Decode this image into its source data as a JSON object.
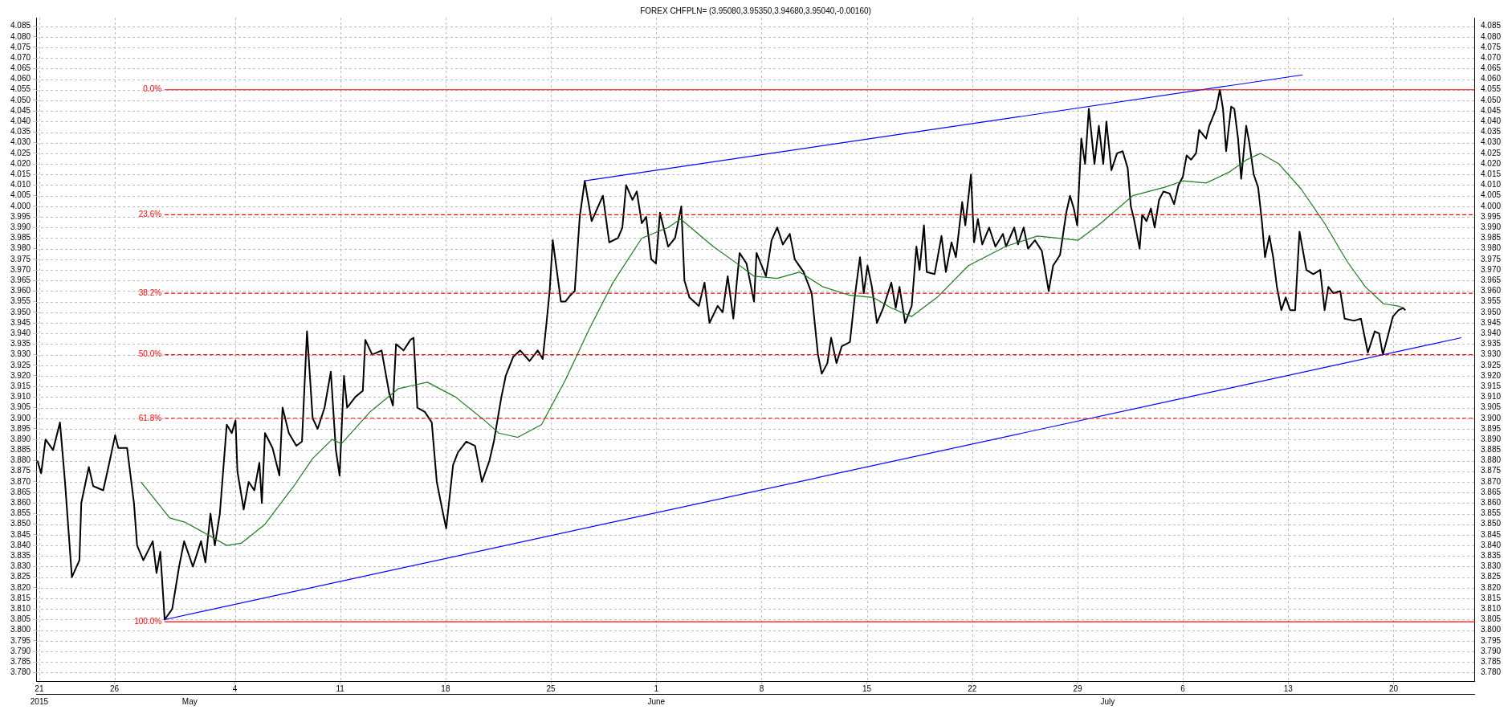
{
  "chart_data": {
    "type": "line",
    "title": "FOREX CHFPLN= (3.95080,3.95350,3.94680,3.95040,-0.00160)",
    "grid": true,
    "xlim": [
      "2015-04-20T19:00",
      "2015-07-25T10:00"
    ],
    "xticks": [
      {
        "value": "2015-04-21",
        "label": "21"
      },
      {
        "value": "2015-04-26",
        "label": "26"
      },
      {
        "value": "2015-05-04",
        "label": "4"
      },
      {
        "value": "2015-05-11",
        "label": "11"
      },
      {
        "value": "2015-05-18",
        "label": "18"
      },
      {
        "value": "2015-05-25",
        "label": "25"
      },
      {
        "value": "2015-06-01",
        "label": "1"
      },
      {
        "value": "2015-06-08",
        "label": "8"
      },
      {
        "value": "2015-06-15",
        "label": "15"
      },
      {
        "value": "2015-06-22",
        "label": "22"
      },
      {
        "value": "2015-06-29",
        "label": "29"
      },
      {
        "value": "2015-07-06",
        "label": "6"
      },
      {
        "value": "2015-07-13",
        "label": "13"
      },
      {
        "value": "2015-07-20",
        "label": "20"
      }
    ],
    "x2lim": [
      "2015-04-20T19:00",
      "2015-07-25T10:00"
    ],
    "x2ticks": [
      {
        "value": "2015-04-21",
        "label": "2015"
      },
      {
        "value": "2015-05-01",
        "label": "May"
      },
      {
        "value": "2015-06-01",
        "label": "June"
      },
      {
        "value": "2015-07-01",
        "label": "July"
      }
    ],
    "ylim": [
      3.776,
      4.089
    ],
    "yticks": [
      {
        "value": 3.78,
        "label": "3.780"
      },
      3.785,
      {
        "value": 3.79,
        "label": "3.790"
      },
      3.795,
      {
        "value": 3.8,
        "label": "3.800"
      },
      3.805,
      {
        "value": 3.81,
        "label": "3.810"
      },
      3.815,
      {
        "value": 3.82,
        "label": "3.820"
      },
      3.825,
      {
        "value": 3.83,
        "label": "3.830"
      },
      3.835,
      {
        "value": 3.84,
        "label": "3.840"
      },
      3.845,
      {
        "value": 3.85,
        "label": "3.850"
      },
      3.855,
      {
        "value": 3.86,
        "label": "3.860"
      },
      3.865,
      {
        "value": 3.87,
        "label": "3.870"
      },
      3.875,
      {
        "value": 3.88,
        "label": "3.880"
      },
      3.885,
      {
        "value": 3.89,
        "label": "3.890"
      },
      3.895,
      {
        "value": 3.9,
        "label": "3.900"
      },
      3.905,
      {
        "value": 3.91,
        "label": "3.910"
      },
      3.915,
      {
        "value": 3.92,
        "label": "3.920"
      },
      3.925,
      {
        "value": 3.93,
        "label": "3.930"
      },
      3.935,
      {
        "value": 3.94,
        "label": "3.940"
      },
      3.945,
      {
        "value": 3.95,
        "label": "3.950"
      },
      3.955,
      {
        "value": 3.96,
        "label": "3.960"
      },
      3.965,
      {
        "value": 3.97,
        "label": "3.970"
      },
      3.975,
      {
        "value": 3.98,
        "label": "3.980"
      },
      3.985,
      {
        "value": 3.99,
        "label": "3.990"
      },
      3.995,
      {
        "value": 4.0,
        "label": "4.000"
      },
      4.005,
      {
        "value": 4.01,
        "label": "4.010"
      },
      4.015,
      {
        "value": 4.02,
        "label": "4.020"
      },
      4.025,
      {
        "value": 4.03,
        "label": "4.030"
      },
      4.035,
      {
        "value": 4.04,
        "label": "4.040"
      },
      4.045,
      {
        "value": 4.05,
        "label": "4.050"
      },
      4.055,
      {
        "value": 4.06,
        "label": "4.060"
      },
      4.065,
      {
        "value": 4.07,
        "label": "4.070"
      },
      4.075,
      {
        "value": 4.08,
        "label": "4.080"
      },
      4.085
    ],
    "y2lim": [
      3.776,
      4.089
    ],
    "y2ticks": [
      {
        "value": 3.78,
        "label": "3.780"
      },
      3.785,
      {
        "value": 3.79,
        "label": "3.790"
      },
      3.795,
      {
        "value": 3.8,
        "label": "3.800"
      },
      3.805,
      {
        "value": 3.81,
        "label": "3.810"
      },
      3.815,
      {
        "value": 3.82,
        "label": "3.820"
      },
      3.825,
      {
        "value": 3.83,
        "label": "3.830"
      },
      3.835,
      {
        "value": 3.84,
        "label": "3.840"
      },
      3.845,
      {
        "value": 3.85,
        "label": "3.850"
      },
      3.855,
      {
        "value": 3.86,
        "label": "3.860"
      },
      3.865,
      {
        "value": 3.87,
        "label": "3.870"
      },
      3.875,
      {
        "value": 3.88,
        "label": "3.880"
      },
      3.885,
      {
        "value": 3.89,
        "label": "3.890"
      },
      3.895,
      {
        "value": 3.9,
        "label": "3.900"
      },
      3.905,
      {
        "value": 3.91,
        "label": "3.910"
      },
      3.915,
      {
        "value": 3.92,
        "label": "3.920"
      },
      3.925,
      {
        "value": 3.93,
        "label": "3.930"
      },
      3.935,
      {
        "value": 3.94,
        "label": "3.940"
      },
      3.945,
      {
        "value": 3.95,
        "label": "3.950"
      },
      3.955,
      {
        "value": 3.96,
        "label": "3.960"
      },
      3.965,
      {
        "value": 3.97,
        "label": "3.970"
      },
      3.975,
      {
        "value": 3.98,
        "label": "3.980"
      },
      3.985,
      {
        "value": 3.99,
        "label": "3.990"
      },
      3.995,
      {
        "value": 4.0,
        "label": "4.000"
      },
      4.005,
      {
        "value": 4.01,
        "label": "4.010"
      },
      4.015,
      {
        "value": 4.02,
        "label": "4.020"
      },
      4.025,
      {
        "value": 4.03,
        "label": "4.030"
      },
      4.035,
      {
        "value": 4.04,
        "label": "4.040"
      },
      4.045,
      {
        "value": 4.05,
        "label": "4.050"
      },
      4.055,
      {
        "value": 4.06,
        "label": "4.060"
      },
      4.065,
      {
        "value": 4.07,
        "label": "4.070"
      },
      4.075,
      {
        "value": 4.08,
        "label": "4.080"
      },
      4.085
    ],
    "series": [
      {
        "name": "0.0%",
        "color": "#ff0000",
        "line_style": "solid",
        "x": [
          "2015-04-29T08:00",
          "2015-07-25T10:00"
        ],
        "values": [
          4.055,
          4.055
        ]
      },
      {
        "name": "23.6%",
        "color": "#ff0000",
        "line_style": "dashed",
        "x": [
          "2015-04-29T08:00",
          "2015-07-25T10:00"
        ],
        "values": [
          3.996,
          3.996
        ]
      },
      {
        "name": "38.2%",
        "color": "#ff0000",
        "line_style": "dashed",
        "x": [
          "2015-04-29T08:00",
          "2015-07-25T10:00"
        ],
        "values": [
          3.959,
          3.959
        ]
      },
      {
        "name": "50.0%",
        "color": "#ff0000",
        "line_style": "dashed",
        "x": [
          "2015-04-29T08:00",
          "2015-07-25T10:00"
        ],
        "values": [
          3.93,
          3.93
        ]
      },
      {
        "name": "61.8%",
        "color": "#ff0000",
        "line_style": "dashed",
        "x": [
          "2015-04-29T08:00",
          "2015-07-25T10:00"
        ],
        "values": [
          3.9,
          3.9
        ]
      },
      {
        "name": "100.0%",
        "color": "#ff0000",
        "line_style": "solid",
        "x": [
          "2015-04-29T08:00",
          "2015-07-25T10:00"
        ],
        "values": [
          3.804,
          3.804
        ]
      },
      {
        "color": "#0000ff",
        "line_style": "solid",
        "x": [
          "2015-05-27T06:00",
          "2015-07-13T23:00"
        ],
        "values": [
          4.012,
          4.062
        ]
      },
      {
        "color": "#0000ff",
        "line_style": "solid",
        "x": [
          "2015-04-29T08:00",
          "2015-07-24T12:00"
        ],
        "values": [
          3.805,
          3.938
        ]
      },
      {
        "color": "#1e7a1e",
        "line_style": "solid",
        "x": [
          "2015-04-27T18:00",
          "2015-04-29T16:00",
          "2015-04-30T16:00",
          "2015-05-02T05:00",
          "2015-05-03T11:00",
          "2015-05-04T10:00",
          "2015-05-06T00:00",
          "2015-05-07T22:00",
          "2015-05-09T04:00",
          "2015-05-10T11:00",
          "2015-05-11T02:00",
          "2015-05-12T23:30",
          "2015-05-14T21:00",
          "2015-05-16T19:00",
          "2015-05-18T16:00",
          "2015-05-20T14:00",
          "2015-05-21T13:00",
          "2015-05-22T19:00",
          "2015-05-24T09:00",
          "2015-05-25T23:00",
          "2015-05-27T13:00",
          "2015-05-29T03:00",
          "2015-05-31T01:00",
          "2015-06-01T19:00",
          "2015-06-02T15:00",
          "2015-06-04T19:00",
          "2015-06-06T09:00",
          "2015-06-07T12:00",
          "2015-06-09T01:00",
          "2015-06-10T13:00",
          "2015-06-12T02:00",
          "2015-06-13T21:00",
          "2015-06-15T10:00",
          "2015-06-16T15:00",
          "2015-06-17T23:30",
          "2015-06-19T16:00",
          "2015-06-21T18:00",
          "2015-06-24T05:00",
          "2015-06-26T08:00",
          "2015-06-29T01:00",
          "2015-06-30T13:00",
          "2015-07-02T16:00",
          "2015-07-04T19:00",
          "2015-07-06T00:00",
          "2015-07-07T13:00",
          "2015-07-09T01:00",
          "2015-07-10T06:00",
          "2015-07-11T04:00",
          "2015-07-12T09:00",
          "2015-07-13T21:00",
          "2015-07-15T10:00",
          "2015-07-16T22:00",
          "2015-07-18T03:00",
          "2015-07-19T08:00",
          "2015-07-20T06:00",
          "2015-07-20T17:00"
        ],
        "values": [
          3.87,
          3.853,
          3.851,
          3.845,
          3.84,
          3.841,
          3.85,
          3.868,
          3.881,
          3.89,
          3.888,
          3.903,
          3.914,
          3.917,
          3.91,
          3.899,
          3.893,
          3.891,
          3.897,
          3.918,
          3.942,
          3.964,
          3.985,
          3.99,
          3.994,
          3.981,
          3.973,
          3.967,
          3.966,
          3.969,
          3.962,
          3.958,
          3.957,
          3.952,
          3.948,
          3.957,
          3.972,
          3.981,
          3.986,
          3.984,
          3.992,
          4.005,
          4.009,
          4.012,
          4.011,
          4.016,
          4.022,
          4.025,
          4.02,
          4.008,
          3.992,
          3.974,
          3.962,
          3.954,
          3.953,
          3.952
        ]
      },
      {
        "color": "#000000",
        "line_style": "solid",
        "x": [
          "2015-04-20T21:00",
          "2015-04-21T03:00",
          "2015-04-21T10:00",
          "2015-04-21T22:00",
          "2015-04-22T09:00",
          "2015-04-22T17:00",
          "2015-04-23T04:00",
          "2015-04-23T16:00",
          "2015-04-23T19:00",
          "2015-04-24T07:00",
          "2015-04-24T14:00",
          "2015-04-25T06:00",
          "2015-04-25T15:00",
          "2015-04-26T01:00",
          "2015-04-26T06:00",
          "2015-04-26T20:00",
          "2015-04-27T07:00",
          "2015-04-27T12:00",
          "2015-04-27T22:00",
          "2015-04-28T13:00",
          "2015-04-28T19:00",
          "2015-04-29T01:00",
          "2015-04-29T08:00",
          "2015-04-29T20:00",
          "2015-04-30T07:00",
          "2015-04-30T15:00",
          "2015-05-01T05:00",
          "2015-05-01T18:00",
          "2015-05-02T01:00",
          "2015-05-02T09:00",
          "2015-05-02T16:00",
          "2015-05-03T00:00",
          "2015-05-03T11:00",
          "2015-05-03T19:00",
          "2015-05-04T01:00",
          "2015-05-04T04:00",
          "2015-05-04T14:00",
          "2015-05-04T22:00",
          "2015-05-05T07:00",
          "2015-05-05T15:00",
          "2015-05-05T19:00",
          "2015-05-06T00:00",
          "2015-05-06T12:00",
          "2015-05-06T23:00",
          "2015-05-07T04:00",
          "2015-05-07T14:00",
          "2015-05-08T02:00",
          "2015-05-08T11:00",
          "2015-05-08T19:00",
          "2015-05-09T04:00",
          "2015-05-09T12:00",
          "2015-05-09T23:00",
          "2015-05-10T09:00",
          "2015-05-10T17:00",
          "2015-05-10T23:00",
          "2015-05-11T06:00",
          "2015-05-11T11:00",
          "2015-05-12T00:00",
          "2015-05-12T12:00",
          "2015-05-12T16:00",
          "2015-05-13T03:00",
          "2015-05-13T18:00",
          "2015-05-14T06:00",
          "2015-05-14T12:00",
          "2015-05-14T17:00",
          "2015-05-15T05:00",
          "2015-05-15T16:00",
          "2015-05-15T21:00",
          "2015-05-16T03:00",
          "2015-05-16T15:00",
          "2015-05-17T02:00",
          "2015-05-17T10:00",
          "2015-05-17T18:00",
          "2015-05-18T01:00",
          "2015-05-18T12:00",
          "2015-05-18T20:00",
          "2015-05-19T09:00",
          "2015-05-19T23:00",
          "2015-05-20T10:00",
          "2015-05-20T22:00",
          "2015-05-21T05:00",
          "2015-05-21T17:00",
          "2015-05-22T00:00",
          "2015-05-22T12:00",
          "2015-05-22T23:00",
          "2015-05-23T14:00",
          "2015-05-24T03:00",
          "2015-05-24T11:00",
          "2015-05-24T17:00",
          "2015-05-24T22:00",
          "2015-05-25T03:00",
          "2015-05-25T16:00",
          "2015-05-25T23:00",
          "2015-05-26T07:00",
          "2015-05-26T14:00",
          "2015-05-26T22:00",
          "2015-05-27T06:00",
          "2015-05-27T17:00",
          "2015-05-28T11:00",
          "2015-05-28T21:00",
          "2015-05-29T11:00",
          "2015-05-29T18:00",
          "2015-05-30T00:00",
          "2015-05-30T10:00",
          "2015-05-30T17:00",
          "2015-05-31T01:00",
          "2015-05-31T08:00",
          "2015-05-31T16:00",
          "2015-05-31T23:30",
          "2015-06-01T06:00",
          "2015-06-01T19:00",
          "2015-06-02T06:00",
          "2015-06-02T16:00",
          "2015-06-02T21:00",
          "2015-06-03T05:00",
          "2015-06-03T20:00",
          "2015-06-04T05:00",
          "2015-06-04T13:00",
          "2015-06-05T02:00",
          "2015-06-05T10:00",
          "2015-06-05T18:00",
          "2015-06-06T03:00",
          "2015-06-06T13:00",
          "2015-06-07T00:00",
          "2015-06-07T12:00",
          "2015-06-07T16:00",
          "2015-06-08T07:00",
          "2015-06-08T16:00",
          "2015-06-09T01:00",
          "2015-06-09T10:00",
          "2015-06-09T21:00",
          "2015-06-10T05:00",
          "2015-06-10T19:00",
          "2015-06-11T08:00",
          "2015-06-11T18:00",
          "2015-06-12T00:00",
          "2015-06-12T09:00",
          "2015-06-12T15:00",
          "2015-06-12T23:30",
          "2015-06-13T08:00",
          "2015-06-13T21:00",
          "2015-06-14T05:00",
          "2015-06-14T13:00",
          "2015-06-14T19:00",
          "2015-06-15T01:00",
          "2015-06-15T08:00",
          "2015-06-15T16:00",
          "2015-06-16T02:00",
          "2015-06-16T15:00",
          "2015-06-16T22:00",
          "2015-06-17T04:00",
          "2015-06-17T13:00",
          "2015-06-17T23:30",
          "2015-06-18T07:00",
          "2015-06-18T12:00",
          "2015-06-18T19:00",
          "2015-06-18T23:30",
          "2015-06-19T12:00",
          "2015-06-19T23:00",
          "2015-06-20T06:00",
          "2015-06-20T15:00",
          "2015-06-20T22:00",
          "2015-06-21T08:00",
          "2015-06-21T13:00",
          "2015-06-21T22:00",
          "2015-06-22T03:00",
          "2015-06-22T09:00",
          "2015-06-22T16:00",
          "2015-06-23T03:00",
          "2015-06-23T13:00",
          "2015-06-24T01:00",
          "2015-06-24T06:00",
          "2015-06-24T19:00",
          "2015-06-25T01:00",
          "2015-06-25T10:00",
          "2015-06-25T17:00",
          "2015-06-26T04:00",
          "2015-06-26T15:00",
          "2015-06-27T02:00",
          "2015-06-27T09:00",
          "2015-06-27T20:00",
          "2015-06-28T06:00",
          "2015-06-28T12:00",
          "2015-06-28T18:00",
          "2015-06-28T23:30",
          "2015-06-29T06:00",
          "2015-06-29T12:00",
          "2015-06-29T18:00",
          "2015-06-30T03:00",
          "2015-06-30T10:00",
          "2015-06-30T17:00",
          "2015-06-30T22:00",
          "2015-07-01T06:00",
          "2015-07-01T15:00",
          "2015-07-02T00:00",
          "2015-07-02T08:00",
          "2015-07-02T13:00",
          "2015-07-02T18:00",
          "2015-07-03T03:00",
          "2015-07-03T07:00",
          "2015-07-03T14:00",
          "2015-07-03T21:00",
          "2015-07-04T03:00",
          "2015-07-04T10:00",
          "2015-07-04T17:00",
          "2015-07-05T03:00",
          "2015-07-05T10:00",
          "2015-07-05T17:00",
          "2015-07-06T00:00",
          "2015-07-06T06:00",
          "2015-07-06T13:00",
          "2015-07-06T21:00",
          "2015-07-07T02:00",
          "2015-07-07T13:00",
          "2015-07-07T18:00",
          "2015-07-07T23:30",
          "2015-07-08T05:00",
          "2015-07-08T11:00",
          "2015-07-08T16:00",
          "2015-07-08T21:00",
          "2015-07-09T05:00",
          "2015-07-09T10:00",
          "2015-07-09T16:00",
          "2015-07-09T21:00",
          "2015-07-10T05:00",
          "2015-07-10T10:00",
          "2015-07-10T17:00",
          "2015-07-11T00:00",
          "2015-07-11T06:00",
          "2015-07-11T11:00",
          "2015-07-11T18:00",
          "2015-07-12T00:00",
          "2015-07-12T06:00",
          "2015-07-12T13:00",
          "2015-07-12T20:00",
          "2015-07-13T03:00",
          "2015-07-13T11:00",
          "2015-07-13T18:00",
          "2015-07-14T05:00",
          "2015-07-14T16:00",
          "2015-07-15T03:00",
          "2015-07-15T10:00",
          "2015-07-15T16:00",
          "2015-07-16T00:00",
          "2015-07-16T11:00",
          "2015-07-16T18:00",
          "2015-07-17T09:00",
          "2015-07-17T20:00",
          "2015-07-18T07:00",
          "2015-07-18T18:00",
          "2015-07-19T01:00",
          "2015-07-19T07:00",
          "2015-07-19T16:00",
          "2015-07-19T23:00",
          "2015-07-20T08:00",
          "2015-07-20T15:00",
          "2015-07-20T19:00"
        ],
        "values": [
          3.88,
          3.874,
          3.89,
          3.885,
          3.898,
          3.87,
          3.825,
          3.833,
          3.86,
          3.877,
          3.868,
          3.866,
          3.878,
          3.892,
          3.886,
          3.886,
          3.86,
          3.84,
          3.833,
          3.842,
          3.827,
          3.837,
          3.805,
          3.81,
          3.83,
          3.842,
          3.83,
          3.842,
          3.832,
          3.855,
          3.84,
          3.855,
          3.897,
          3.893,
          3.899,
          3.875,
          3.857,
          3.87,
          3.866,
          3.879,
          3.86,
          3.893,
          3.886,
          3.873,
          3.905,
          3.893,
          3.887,
          3.889,
          3.941,
          3.9,
          3.895,
          3.905,
          3.922,
          3.885,
          3.873,
          3.92,
          3.905,
          3.91,
          3.913,
          3.937,
          3.93,
          3.932,
          3.912,
          3.906,
          3.935,
          3.932,
          3.937,
          3.938,
          3.905,
          3.903,
          3.898,
          3.87,
          3.858,
          3.848,
          3.878,
          3.884,
          3.889,
          3.887,
          3.87,
          3.88,
          3.889,
          3.91,
          3.92,
          3.929,
          3.932,
          3.927,
          3.932,
          3.928,
          3.945,
          3.96,
          3.984,
          3.955,
          3.955,
          3.958,
          3.96,
          3.995,
          4.012,
          3.993,
          4.005,
          3.983,
          3.985,
          3.99,
          4.01,
          4.003,
          4.007,
          3.992,
          3.995,
          3.975,
          3.973,
          3.997,
          3.981,
          3.985,
          4.0,
          3.965,
          3.957,
          3.953,
          3.964,
          3.945,
          3.953,
          3.95,
          3.967,
          3.947,
          3.978,
          3.973,
          3.955,
          3.978,
          3.967,
          3.984,
          3.99,
          3.982,
          3.987,
          3.975,
          3.969,
          3.959,
          3.93,
          3.921,
          3.926,
          3.938,
          3.926,
          3.934,
          3.936,
          3.958,
          3.976,
          3.959,
          3.972,
          3.962,
          3.945,
          3.952,
          3.964,
          3.952,
          3.962,
          3.945,
          3.953,
          3.981,
          3.97,
          3.991,
          3.969,
          3.968,
          3.986,
          3.969,
          3.983,
          3.976,
          4.002,
          3.991,
          4.015,
          3.983,
          3.994,
          3.982,
          3.99,
          3.981,
          3.987,
          3.981,
          3.99,
          3.982,
          3.99,
          3.98,
          3.984,
          3.979,
          3.96,
          3.972,
          3.977,
          3.997,
          4.005,
          3.999,
          3.991,
          4.032,
          4.02,
          4.046,
          4.02,
          4.038,
          4.02,
          4.04,
          4.017,
          4.025,
          4.026,
          4.018,
          4.0,
          3.994,
          3.98,
          3.996,
          3.993,
          3.999,
          3.99,
          4.003,
          4.007,
          4.006,
          4.001,
          4.01,
          4.014,
          4.024,
          4.022,
          4.025,
          4.036,
          4.032,
          4.038,
          4.042,
          4.046,
          4.055,
          4.046,
          4.026,
          4.047,
          4.046,
          4.032,
          4.013,
          4.038,
          4.03,
          4.015,
          4.009,
          3.993,
          3.976,
          3.986,
          3.976,
          3.962,
          3.951,
          3.957,
          3.951,
          3.951,
          3.988,
          3.97,
          3.968,
          3.97,
          3.951,
          3.962,
          3.959,
          3.96,
          3.947,
          3.946,
          3.947,
          3.931,
          3.941,
          3.94,
          3.93,
          3.94,
          3.948,
          3.951,
          3.952,
          3.951
        ]
      }
    ]
  }
}
